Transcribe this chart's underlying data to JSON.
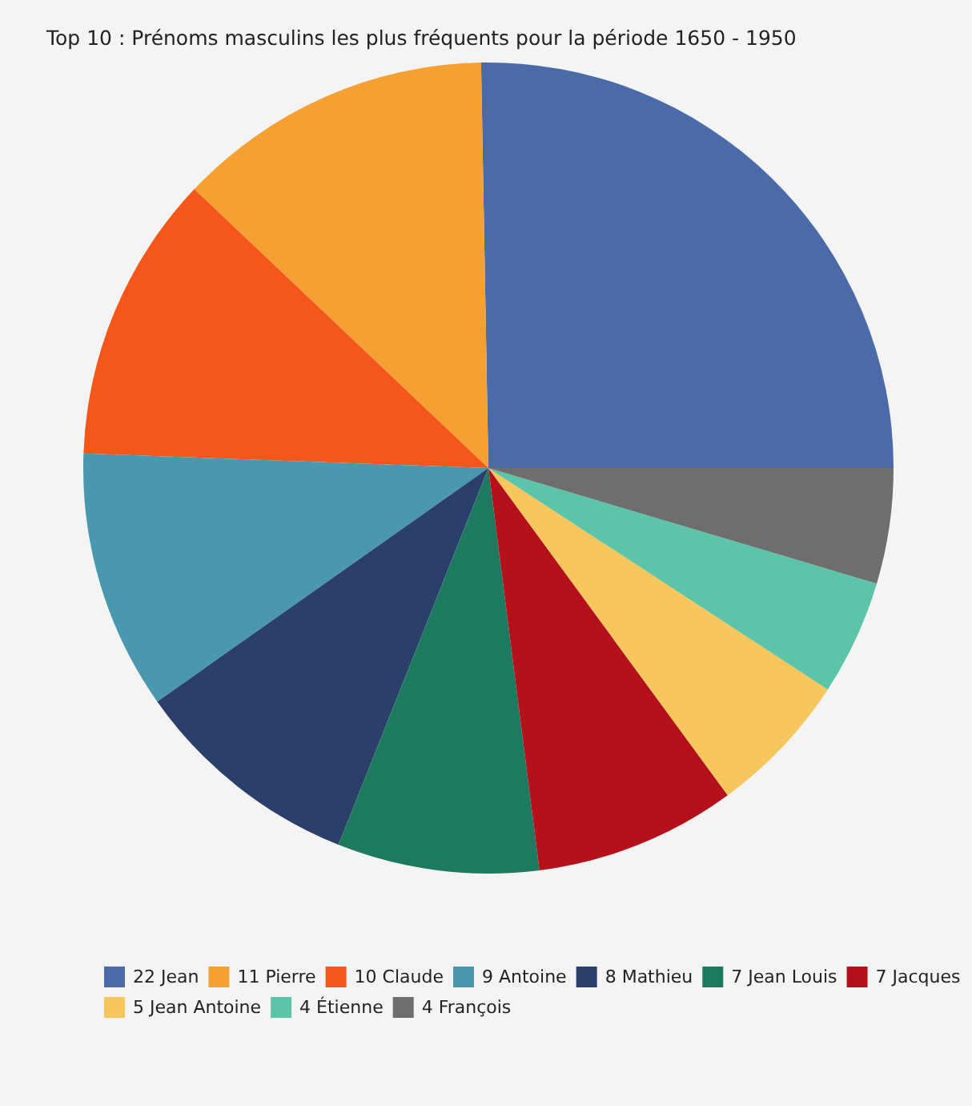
{
  "chart_data": {
    "type": "pie",
    "title": "Top 10 : Prénoms masculins les plus fréquents pour la période 1650 - 1950",
    "categories": [
      "22 Jean",
      "11 Pierre",
      "10 Claude",
      "9 Antoine",
      "8 Mathieu",
      "7 Jean Louis",
      "7 Jacques",
      "5 Jean Antoine",
      "4 Étienne",
      "4 François"
    ],
    "values": [
      22,
      11,
      10,
      9,
      8,
      7,
      7,
      5,
      4,
      4
    ],
    "colors": [
      "#4a6aa8",
      "#f5a033",
      "#f5561a",
      "#4a98ae",
      "#2b3f6b",
      "#1d7a60",
      "#b5111a",
      "#f7c75d",
      "#5cc4a8",
      "#6e6e6e"
    ],
    "legend": "bottom"
  }
}
